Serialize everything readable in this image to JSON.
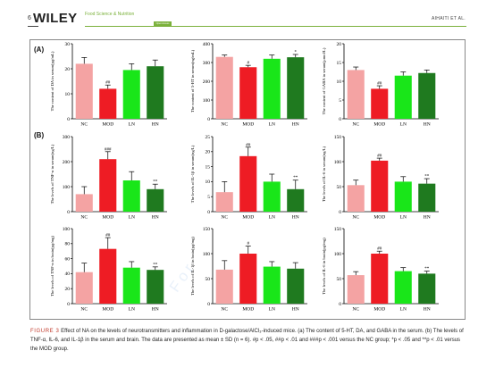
{
  "header": {
    "page_number": "6",
    "publisher": "WILEY",
    "journal_name": "Food Science & Nutrition",
    "journal_badge": "Open Access",
    "author": "AIHAITI ET AL."
  },
  "figure": {
    "panel_labels": [
      "(A)",
      "(B)"
    ],
    "watermark": "For",
    "caption_label": "FIGURE 3",
    "caption_text": "Effect of NA on the levels of neurotransmitters and inflammation in D-galactose/AlCl₃-induced mice. (a) The content of 5-HT, DA, and GABA in the serum. (b) The levels of TNF-α, IL-6, and IL-1β in the serum and brain. The data are presented as mean ± SD (n = 6). #p < .05, ##p < .01 and ###p < .001 versus the NC group; *p < .05 and **p < .01 versus the MOD group."
  },
  "colors": {
    "NC": "#f4a3a3",
    "MOD": "#ee1c24",
    "LN": "#19e619",
    "HN": "#1f7a1f"
  },
  "chart_data": [
    {
      "type": "bar",
      "categories": [
        "NC",
        "MOD",
        "LN",
        "HN"
      ],
      "values": [
        22,
        12,
        19.5,
        21
      ],
      "errors": [
        2.5,
        1.5,
        2.5,
        2.5
      ],
      "annotations": [
        "",
        "##",
        "",
        ""
      ],
      "ylabel": "The content of DA in serum(pg/mL)",
      "ylim": [
        0,
        30
      ],
      "yticks": [
        0,
        10,
        20,
        30
      ]
    },
    {
      "type": "bar",
      "categories": [
        "NC",
        "MOD",
        "LN",
        "HN"
      ],
      "values": [
        330,
        275,
        320,
        328
      ],
      "errors": [
        10,
        10,
        20,
        15
      ],
      "annotations": [
        "",
        "#",
        "",
        "*"
      ],
      "ylabel": "The content of 5-HT in serum(ng/mL)",
      "ylim": [
        0,
        400
      ],
      "yticks": [
        0,
        100,
        200,
        300,
        400
      ]
    },
    {
      "type": "bar",
      "categories": [
        "NC",
        "MOD",
        "LN",
        "HN"
      ],
      "values": [
        13,
        8,
        11.5,
        12.2
      ],
      "errors": [
        0.8,
        0.8,
        1.0,
        0.8
      ],
      "annotations": [
        "",
        "##",
        "",
        ""
      ],
      "ylabel": "The content of GABA in serum(µmol/L)",
      "ylim": [
        0,
        20
      ],
      "yticks": [
        0,
        5,
        10,
        15,
        20
      ]
    },
    {
      "type": "bar",
      "categories": [
        "NC",
        "MOD",
        "LN",
        "HN"
      ],
      "values": [
        70,
        210,
        125,
        90
      ],
      "errors": [
        30,
        30,
        35,
        20
      ],
      "annotations": [
        "",
        "###",
        "",
        "**"
      ],
      "ylabel": "The levels of TNF-α in serum(ng/L)",
      "ylim": [
        0,
        300
      ],
      "yticks": [
        0,
        100,
        200,
        300
      ]
    },
    {
      "type": "bar",
      "categories": [
        "NC",
        "MOD",
        "LN",
        "HN"
      ],
      "values": [
        6.5,
        18.5,
        10,
        7.5
      ],
      "errors": [
        3.5,
        3,
        2.5,
        3
      ],
      "annotations": [
        "",
        "##",
        "",
        "**"
      ],
      "ylabel": "The levels of IL-1β in serum(ng/L)",
      "ylim": [
        0,
        25
      ],
      "yticks": [
        0,
        5,
        10,
        15,
        20,
        25
      ]
    },
    {
      "type": "bar",
      "categories": [
        "NC",
        "MOD",
        "LN",
        "HN"
      ],
      "values": [
        53,
        102,
        60,
        56
      ],
      "errors": [
        10,
        5,
        10,
        10
      ],
      "annotations": [
        "",
        "##",
        "",
        "**"
      ],
      "ylabel": "The levels of IL-6 in serum(ng/L)",
      "ylim": [
        0,
        150
      ],
      "yticks": [
        0,
        50,
        100,
        150
      ]
    },
    {
      "type": "bar",
      "categories": [
        "NC",
        "MOD",
        "LN",
        "HN"
      ],
      "values": [
        42,
        73,
        48,
        45
      ],
      "errors": [
        12,
        15,
        8,
        4
      ],
      "annotations": [
        "",
        "##",
        "",
        "**"
      ],
      "ylabel": "The levels of TNF-α in brain(pg/mg)",
      "ylim": [
        0,
        100
      ],
      "yticks": [
        0,
        20,
        40,
        60,
        80,
        100
      ]
    },
    {
      "type": "bar",
      "categories": [
        "NC",
        "MOD",
        "LN",
        "HN"
      ],
      "values": [
        68,
        100,
        74,
        70
      ],
      "errors": [
        18,
        15,
        10,
        12
      ],
      "annotations": [
        "",
        "#",
        "",
        ""
      ],
      "ylabel": "The levels of IL-1β in brain(pg/mg)",
      "ylim": [
        0,
        150
      ],
      "yticks": [
        0,
        50,
        100,
        150
      ]
    },
    {
      "type": "bar",
      "categories": [
        "NC",
        "MOD",
        "LN",
        "HN"
      ],
      "values": [
        57,
        100,
        65,
        60
      ],
      "errors": [
        7,
        5,
        7,
        5
      ],
      "annotations": [
        "",
        "##",
        "",
        "**"
      ],
      "ylabel": "The levels of IL-6 in brain(pg/mg)",
      "ylim": [
        0,
        150
      ],
      "yticks": [
        0,
        50,
        100,
        150
      ]
    }
  ]
}
